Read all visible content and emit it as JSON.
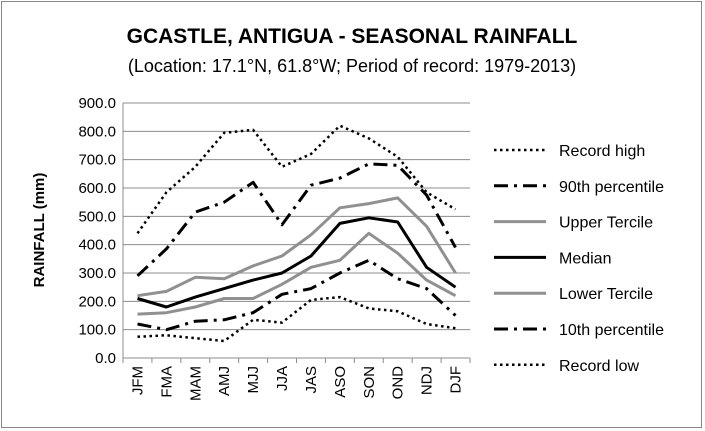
{
  "chart_data": {
    "type": "line",
    "title": "GCASTLE, ANTIGUA - SEASONAL RAINFALL",
    "subtitle": "(Location: 17.1°N, 61.8°W; Period of record: 1979-2013)",
    "ylabel": "RAINFALL (mm)",
    "xlabel": "",
    "ylim": [
      0,
      900
    ],
    "yticks": [
      "0.0",
      "100.0",
      "200.0",
      "300.0",
      "400.0",
      "500.0",
      "600.0",
      "700.0",
      "800.0",
      "900.0"
    ],
    "categories": [
      "JFM",
      "FMA",
      "MAM",
      "AMJ",
      "MJJ",
      "JJA",
      "JAS",
      "ASO",
      "SON",
      "OND",
      "NDJ",
      "DJF"
    ],
    "grid": true,
    "legend_position": "right",
    "series": [
      {
        "name": "Record high",
        "style": "dotted",
        "color": "#000000",
        "width": 2.5,
        "values": [
          440,
          585,
          675,
          795,
          805,
          675,
          720,
          820,
          775,
          710,
          585,
          525
        ]
      },
      {
        "name": "90th percentile",
        "style": "dashdot",
        "color": "#000000",
        "width": 3,
        "values": [
          290,
          385,
          515,
          550,
          620,
          470,
          610,
          635,
          685,
          680,
          575,
          390
        ]
      },
      {
        "name": "Upper Tercile",
        "style": "solid",
        "color": "#909090",
        "width": 3,
        "values": [
          220,
          235,
          285,
          280,
          325,
          360,
          435,
          530,
          545,
          565,
          465,
          300
        ]
      },
      {
        "name": "Median",
        "style": "solid",
        "color": "#000000",
        "width": 3,
        "values": [
          210,
          180,
          215,
          245,
          275,
          300,
          360,
          475,
          495,
          480,
          320,
          250
        ]
      },
      {
        "name": "Lower Tercile",
        "style": "solid",
        "color": "#909090",
        "width": 3,
        "values": [
          155,
          160,
          180,
          210,
          210,
          260,
          320,
          345,
          440,
          370,
          275,
          220
        ]
      },
      {
        "name": "10th percentile",
        "style": "dashdot",
        "color": "#000000",
        "width": 3,
        "values": [
          120,
          100,
          130,
          135,
          160,
          225,
          245,
          300,
          345,
          280,
          245,
          150
        ]
      },
      {
        "name": "Record low",
        "style": "dotted",
        "color": "#000000",
        "width": 2.5,
        "values": [
          75,
          80,
          70,
          60,
          135,
          125,
          205,
          215,
          175,
          165,
          120,
          105
        ]
      }
    ]
  }
}
